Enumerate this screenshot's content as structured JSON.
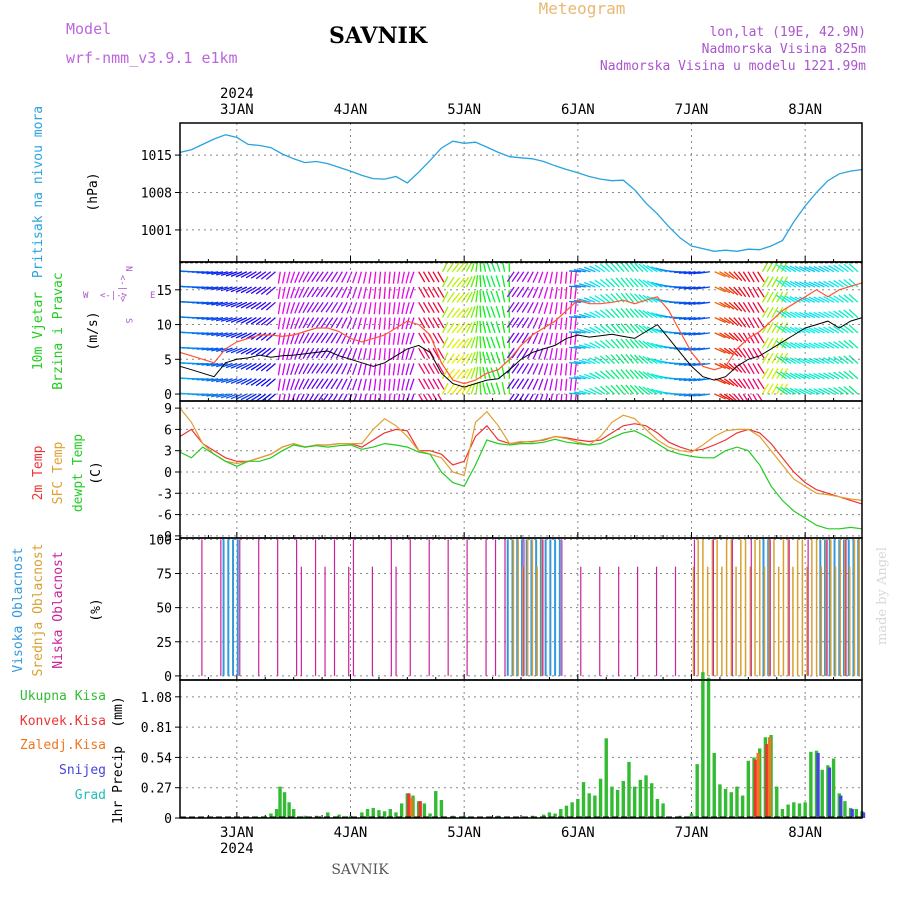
{
  "header": {
    "model_label": "Model",
    "model_name": "wrf-nmm_v3.9.1 e1km",
    "station": "SAVNIK",
    "product": "Meteogram",
    "lonlat": "lon,lat (19E, 42.9N)",
    "elevation": "Nadmorska Visina 825m",
    "model_elevation": "Nadmorska Visina u modelu 1221.99m"
  },
  "footer": {
    "station": "SAVNIK",
    "watermark": "made by Angel"
  },
  "colors": {
    "pressure": "#29a3e0",
    "wind_speed": "#000000",
    "wind_gust": "#ff5533",
    "temp2m": "#ee3333",
    "sfc_temp": "#e0a030",
    "dewpt": "#22cc22",
    "cloud_high": "#3399dd",
    "cloud_mid": "#d9a030",
    "cloud_low": "#cc2299",
    "precip_total": "#33bb33",
    "precip_conv": "#ee3333",
    "precip_frz": "#ee7722",
    "precip_snow": "#4444dd",
    "precip_grad": "#22bbbb",
    "grid": "#888888"
  },
  "chart_data": {
    "type": "meteogram",
    "x_axis": {
      "range_days": [
        -0.5,
        5.5
      ],
      "tick_labels": [
        "3JAN",
        "4JAN",
        "5JAN",
        "6JAN",
        "7JAN",
        "8JAN"
      ],
      "year": "2024"
    },
    "panels": [
      {
        "id": "pressure",
        "type": "line",
        "labels": [
          "Pritisak na nivou mora"
        ],
        "unit": "(hPa)",
        "ylim": [
          995,
          1021
        ],
        "yticks": [
          1001,
          1008,
          1015
        ],
        "x": [
          -0.5,
          -0.4,
          -0.3,
          -0.2,
          -0.1,
          0,
          0.1,
          0.2,
          0.3,
          0.4,
          0.5,
          0.6,
          0.7,
          0.8,
          0.9,
          1,
          1.1,
          1.2,
          1.3,
          1.4,
          1.5,
          1.6,
          1.7,
          1.8,
          1.9,
          2,
          2.1,
          2.2,
          2.3,
          2.4,
          2.5,
          2.6,
          2.7,
          2.8,
          2.9,
          3,
          3.1,
          3.2,
          3.3,
          3.4,
          3.5,
          3.6,
          3.7,
          3.8,
          3.9,
          4,
          4.1,
          4.2,
          4.3,
          4.4,
          4.5,
          4.6,
          4.7,
          4.8,
          4.9,
          5,
          5.1,
          5.2,
          5.3,
          5.4,
          5.5
        ],
        "y": [
          1015.5,
          1016,
          1017,
          1018,
          1018.8,
          1018.3,
          1017,
          1016.8,
          1016.4,
          1015.2,
          1014.3,
          1013.6,
          1013.8,
          1013.4,
          1012.7,
          1012,
          1011.2,
          1010.6,
          1010.5,
          1011,
          1009.8,
          1011.8,
          1014,
          1016.3,
          1017.6,
          1017.2,
          1017.4,
          1016.5,
          1015.5,
          1014.7,
          1014.5,
          1014.3,
          1013.8,
          1013,
          1012.3,
          1011.7,
          1011,
          1010.5,
          1010.2,
          1010.3,
          1008.5,
          1006,
          1004,
          1001.6,
          999.5,
          998,
          997.5,
          997,
          997.2,
          997,
          997.4,
          997.3,
          998,
          999,
          1002.5,
          1005.5,
          1008,
          1010.2,
          1011.5,
          1012,
          1012.3
        ]
      },
      {
        "id": "wind",
        "type": "line+barbs",
        "labels": [
          "10m Vjetar",
          "Brzina i Pravac"
        ],
        "unit": "(m/s)",
        "compass_labels": [
          "N",
          "W",
          "E",
          "S",
          "<-|->"
        ],
        "ylim": [
          -1,
          19
        ],
        "yticks": [
          0,
          5,
          10,
          15
        ],
        "x": [
          -0.5,
          -0.4,
          -0.3,
          -0.2,
          -0.1,
          0,
          0.1,
          0.2,
          0.3,
          0.4,
          0.5,
          0.6,
          0.7,
          0.8,
          0.9,
          1,
          1.1,
          1.2,
          1.3,
          1.4,
          1.5,
          1.6,
          1.7,
          1.8,
          1.9,
          2,
          2.1,
          2.2,
          2.3,
          2.4,
          2.5,
          2.6,
          2.7,
          2.8,
          2.9,
          3,
          3.1,
          3.2,
          3.3,
          3.4,
          3.5,
          3.6,
          3.7,
          3.8,
          3.9,
          4,
          4.1,
          4.2,
          4.3,
          4.4,
          4.5,
          4.6,
          4.7,
          4.8,
          4.9,
          5,
          5.1,
          5.2,
          5.3,
          5.4,
          5.5
        ],
        "series": [
          {
            "name": "speed",
            "y": [
              4,
              3.5,
              3,
              2.5,
              4.5,
              5,
              5.2,
              5.6,
              5.3,
              5.5,
              5.6,
              5.8,
              6,
              6.2,
              5.5,
              5,
              4.5,
              4,
              4.5,
              5.5,
              6.5,
              7,
              6,
              3,
              1.5,
              1,
              1.5,
              2,
              2.2,
              3.5,
              5,
              6,
              6.5,
              7,
              8,
              8.5,
              8.2,
              8.4,
              8.6,
              8.3,
              8,
              9,
              10,
              8,
              6,
              4,
              2.5,
              2,
              2.5,
              4,
              5,
              5.5,
              6.5,
              7.5,
              8.5,
              9.5,
              10,
              10.5,
              9.5,
              10.5,
              11
            ]
          },
          {
            "name": "gust",
            "y": [
              6,
              5.5,
              5,
              4.5,
              6.5,
              7.5,
              8,
              8.5,
              8.5,
              8.3,
              8.5,
              9,
              9.5,
              9.5,
              9,
              8,
              7.5,
              8,
              8.5,
              9.5,
              10.5,
              10,
              8.5,
              4.5,
              2,
              1.5,
              2,
              3,
              3.5,
              5,
              7,
              8.5,
              9.5,
              10.5,
              12,
              13.5,
              13,
              13,
              13.2,
              13.5,
              13,
              13.5,
              14,
              12,
              9,
              6,
              4,
              3.5,
              4,
              6.5,
              8,
              9,
              10.5,
              12,
              13,
              14,
              15,
              14,
              15,
              15.5,
              16
            ]
          }
        ]
      },
      {
        "id": "temperature",
        "type": "line",
        "labels": [
          "2m Temp",
          "SFC Temp",
          "dewpt Temp"
        ],
        "unit": "(C)",
        "ylim": [
          -9.3,
          10
        ],
        "yticks": [
          -9,
          -6,
          -3,
          0,
          3,
          6,
          9
        ],
        "x": [
          -0.5,
          -0.4,
          -0.3,
          -0.2,
          -0.1,
          0,
          0.1,
          0.2,
          0.3,
          0.4,
          0.5,
          0.6,
          0.7,
          0.8,
          0.9,
          1,
          1.1,
          1.2,
          1.3,
          1.4,
          1.5,
          1.6,
          1.7,
          1.8,
          1.9,
          2,
          2.1,
          2.2,
          2.3,
          2.4,
          2.5,
          2.6,
          2.7,
          2.8,
          2.9,
          3,
          3.1,
          3.2,
          3.3,
          3.4,
          3.5,
          3.6,
          3.7,
          3.8,
          3.9,
          4,
          4.1,
          4.2,
          4.3,
          4.4,
          4.5,
          4.6,
          4.7,
          4.8,
          4.9,
          5,
          5.1,
          5.2,
          5.3,
          5.4,
          5.5
        ],
        "series": [
          {
            "name": "temp2m",
            "y": [
              5,
              6,
              4,
              3,
              2,
              1.5,
              1.5,
              2,
              2.5,
              3.5,
              4,
              3.5,
              3.8,
              3.8,
              4,
              4,
              3.5,
              4.5,
              5.5,
              6,
              5.8,
              3,
              3,
              2.5,
              1,
              1.5,
              5,
              6.5,
              4.5,
              4,
              4.2,
              4.3,
              4.5,
              5,
              4.8,
              4.5,
              4.3,
              4.5,
              5.5,
              6.5,
              6.8,
              6.5,
              5.5,
              4.2,
              3.5,
              3,
              3.2,
              3.8,
              4.5,
              5.5,
              6,
              5.5,
              4,
              2,
              0,
              -1.5,
              -2.5,
              -3,
              -3.5,
              -4,
              -4.5
            ]
          },
          {
            "name": "sfc_temp",
            "y": [
              9,
              7,
              4,
              2.5,
              1.5,
              1.2,
              1.5,
              2,
              2.5,
              3.5,
              4,
              3.5,
              3.8,
              3.8,
              4,
              4,
              4,
              6,
              7.5,
              6.5,
              5,
              3,
              2.5,
              2,
              0,
              -0.5,
              7,
              8.5,
              6.5,
              4,
              4.3,
              4.2,
              4.6,
              5,
              4.7,
              4.2,
              3.8,
              5,
              7,
              8,
              7.5,
              6,
              4.5,
              3.5,
              3,
              2.8,
              3.8,
              5,
              5.8,
              6,
              6,
              5,
              3,
              1,
              -1,
              -2,
              -3,
              -3.2,
              -3.5,
              -3.8,
              -4
            ]
          },
          {
            "name": "dewpt",
            "y": [
              2.8,
              2,
              3.5,
              2.5,
              1.5,
              0.8,
              1.5,
              1.5,
              2,
              3,
              3.8,
              3.5,
              3.7,
              3.5,
              3.7,
              3.8,
              3.2,
              3.5,
              4,
              3.8,
              3.5,
              2.8,
              2.5,
              0,
              -1.5,
              -2,
              1,
              4.5,
              4,
              3.8,
              4,
              4,
              4.2,
              4.6,
              4.2,
              4,
              3.8,
              4,
              4.8,
              5.5,
              5.8,
              5,
              4,
              3,
              2.5,
              2.2,
              2,
              2,
              3,
              3.5,
              3,
              1,
              -2,
              -4,
              -5.5,
              -6.5,
              -7.5,
              -8,
              -8,
              -7.8,
              -8
            ]
          }
        ]
      },
      {
        "id": "clouds",
        "type": "bar",
        "labels": [
          "Visoka Oblacnost",
          "Srednja Oblacnost",
          "Niska Oblacnost"
        ],
        "unit": "(%)",
        "ylim": [
          -3,
          101
        ],
        "yticks": [
          0,
          25,
          50,
          75,
          100
        ]
      },
      {
        "id": "precip",
        "type": "bar",
        "labels": [
          "1hr Precip"
        ],
        "unit": "(mm)",
        "legend": [
          "Ukupna Kisa",
          "Konvek.Kisa",
          "Zaledj.Kisa",
          "Snijeg",
          "Grad"
        ],
        "ylim": [
          0,
          1.23
        ],
        "yticks": [
          0,
          0.27,
          0.54,
          0.81,
          1.08
        ],
        "total": [
          [
            -0.2,
            0.01
          ],
          [
            0.1,
            0.01
          ],
          [
            0.2,
            0.01
          ],
          [
            0.3,
            0.04
          ],
          [
            0.35,
            0.08
          ],
          [
            0.38,
            0.28
          ],
          [
            0.42,
            0.23
          ],
          [
            0.46,
            0.14
          ],
          [
            0.5,
            0.08
          ],
          [
            0.6,
            0.02
          ],
          [
            0.7,
            0.02
          ],
          [
            0.8,
            0.05
          ],
          [
            0.9,
            0.03
          ],
          [
            1.0,
            0.02
          ],
          [
            1.1,
            0.05
          ],
          [
            1.15,
            0.08
          ],
          [
            1.2,
            0.09
          ],
          [
            1.25,
            0.07
          ],
          [
            1.3,
            0.06
          ],
          [
            1.35,
            0.08
          ],
          [
            1.4,
            0.05
          ],
          [
            1.45,
            0.13
          ],
          [
            1.5,
            0.22
          ],
          [
            1.55,
            0.2
          ],
          [
            1.6,
            0.15
          ],
          [
            1.65,
            0.13
          ],
          [
            1.7,
            0.04
          ],
          [
            1.75,
            0.24
          ],
          [
            1.8,
            0.16
          ],
          [
            1.9,
            0.02
          ],
          [
            2.0,
            0.02
          ],
          [
            2.3,
            0.02
          ],
          [
            2.6,
            0.02
          ],
          [
            2.7,
            0.03
          ],
          [
            2.75,
            0.05
          ],
          [
            2.8,
            0.04
          ],
          [
            2.85,
            0.08
          ],
          [
            2.9,
            0.11
          ],
          [
            2.95,
            0.14
          ],
          [
            3.0,
            0.17
          ],
          [
            3.05,
            0.32
          ],
          [
            3.1,
            0.22
          ],
          [
            3.15,
            0.2
          ],
          [
            3.2,
            0.35
          ],
          [
            3.25,
            0.71
          ],
          [
            3.3,
            0.28
          ],
          [
            3.35,
            0.25
          ],
          [
            3.4,
            0.33
          ],
          [
            3.45,
            0.5
          ],
          [
            3.5,
            0.28
          ],
          [
            3.55,
            0.34
          ],
          [
            3.6,
            0.38
          ],
          [
            3.65,
            0.31
          ],
          [
            3.7,
            0.17
          ],
          [
            3.75,
            0.13
          ],
          [
            3.9,
            0.02
          ],
          [
            4.0,
            0.04
          ],
          [
            4.05,
            0.48
          ],
          [
            4.1,
            1.3
          ],
          [
            4.15,
            1.25
          ],
          [
            4.2,
            0.58
          ],
          [
            4.25,
            0.3
          ],
          [
            4.3,
            0.26
          ],
          [
            4.35,
            0.23
          ],
          [
            4.4,
            0.28
          ],
          [
            4.45,
            0.2
          ],
          [
            4.5,
            0.51
          ],
          [
            4.55,
            0.54
          ],
          [
            4.6,
            0.62
          ],
          [
            4.65,
            0.72
          ],
          [
            4.7,
            0.74
          ],
          [
            4.75,
            0.28
          ],
          [
            4.8,
            0.08
          ],
          [
            4.85,
            0.12
          ],
          [
            4.9,
            0.14
          ],
          [
            4.95,
            0.13
          ],
          [
            5.0,
            0.14
          ],
          [
            5.05,
            0.59
          ],
          [
            5.1,
            0.6
          ],
          [
            5.15,
            0.43
          ],
          [
            5.2,
            0.47
          ],
          [
            5.25,
            0.53
          ],
          [
            5.3,
            0.22
          ],
          [
            5.35,
            0.15
          ],
          [
            5.4,
            0.09
          ],
          [
            5.45,
            0.08
          ],
          [
            5.5,
            0.06
          ]
        ],
        "convective": [
          [
            1.5,
            0.22
          ],
          [
            1.6,
            0.15
          ],
          [
            4.55,
            0.52
          ],
          [
            4.65,
            0.66
          ]
        ],
        "frozen": [
          [
            1.55,
            0.18
          ],
          [
            4.6,
            0.58
          ],
          [
            4.7,
            0.72
          ]
        ],
        "snow": [
          [
            5.1,
            0.58
          ],
          [
            5.2,
            0.45
          ],
          [
            5.3,
            0.2
          ],
          [
            5.4,
            0.08
          ],
          [
            5.5,
            0.05
          ]
        ],
        "graupel": []
      }
    ]
  }
}
